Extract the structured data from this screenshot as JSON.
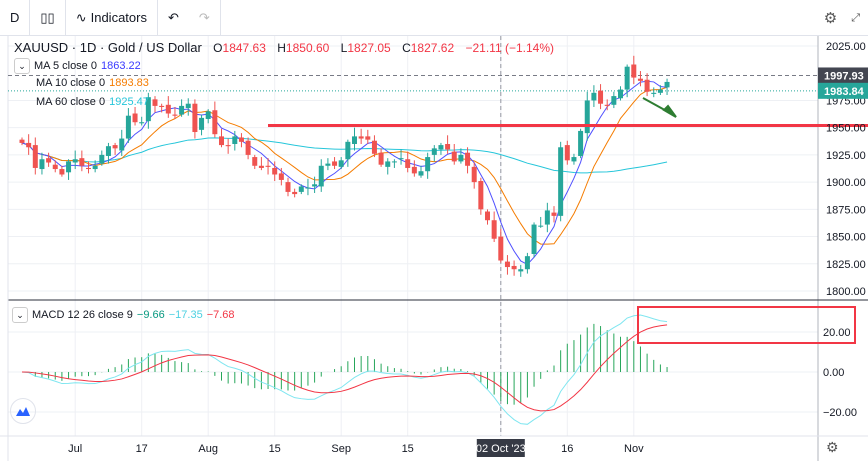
{
  "toolbar": {
    "interval": "D",
    "chart_type_icon": "candles-icon",
    "indicators_label": "Indicators",
    "undo_icon": "undo-icon",
    "redo_icon": "redo-icon",
    "settings_icon": "gear-icon",
    "fullscreen_icon": "fullscreen-icon"
  },
  "legend": {
    "symbol": "XAUUSD · 1D · Gold / US Dollar",
    "open_label": "O",
    "open": "1847.63",
    "high_label": "H",
    "high": "1850.60",
    "low_label": "L",
    "low": "1827.05",
    "close_label": "C",
    "close": "1827.62",
    "change": "−21.11 (−1.14%)",
    "ma": [
      {
        "label": "MA 5 close 0",
        "value": "1863.22",
        "color": "#3a3aff"
      },
      {
        "label": "MA 10 close 0",
        "value": "1893.83",
        "color": "#f57c00"
      },
      {
        "label": "MA 60 close 0",
        "value": "1925.47",
        "color": "#26c6da"
      }
    ],
    "macd": {
      "label": "MACD 12 26 close 9",
      "hist": "−9.66",
      "macd": "−17.35",
      "signal": "−7.68"
    }
  },
  "price_axis": {
    "ticks": [
      "2025.00",
      "1975.00",
      "1950.00",
      "1925.00",
      "1900.00",
      "1875.00",
      "1850.00",
      "1825.00",
      "1800.00"
    ],
    "tick_values": [
      2025,
      1975,
      1950,
      1925,
      1900,
      1875,
      1850,
      1825,
      1800
    ],
    "marker_dark": "1997.93",
    "marker_teal": "1983.84"
  },
  "macd_axis": {
    "ticks": [
      "20.00",
      "0.00",
      "−20.00"
    ],
    "tick_values": [
      20,
      0,
      -20
    ]
  },
  "time_axis": {
    "labels": [
      "Jul",
      "17",
      "Aug",
      "15",
      "Sep",
      "15",
      "02 Oct '23",
      "16",
      "Nov"
    ],
    "label_bar_index": [
      8,
      18,
      28,
      38,
      48,
      58,
      72,
      82,
      92
    ],
    "crosshair_label": "02 Oct '23"
  },
  "colors": {
    "up": "#26a69a",
    "down": "#ef5350",
    "annotation_red": "#f23645",
    "annotation_green": "#2e7d32",
    "macd_line": "#7fe6f0",
    "signal_line": "#f23645",
    "hist": "#26a65a"
  },
  "chart_data": {
    "type": "candlestick",
    "closes": [
      1936,
      1932,
      1913,
      1921,
      1918,
      1912,
      1907,
      1919,
      1921,
      1915,
      1912,
      1915,
      1925,
      1933,
      1931,
      1940,
      1961,
      1955,
      1955,
      1978,
      1970,
      1969,
      1963,
      1961,
      1970,
      1972,
      1946,
      1959,
      1965,
      1944,
      1934,
      1933,
      1942,
      1937,
      1925,
      1915,
      1913,
      1914,
      1907,
      1902,
      1891,
      1889,
      1896,
      1895,
      1898,
      1915,
      1917,
      1915,
      1920,
      1937,
      1942,
      1940,
      1939,
      1926,
      1916,
      1919,
      1919,
      1922,
      1913,
      1908,
      1910,
      1923,
      1931,
      1934,
      1930,
      1919,
      1925,
      1915,
      1900,
      1875,
      1865,
      1848,
      1828,
      1822,
      1820,
      1820,
      1832,
      1861,
      1860,
      1874,
      1869,
      1932,
      1920,
      1923,
      1947,
      1975,
      1982,
      1972,
      1970,
      1979,
      1985,
      2006,
      1996,
      1993,
      1983,
      1982,
      1985,
      1992
    ],
    "ylim": [
      1790,
      2035
    ],
    "annotations": {
      "support_level": 1952,
      "trend_arrow": "down"
    }
  }
}
